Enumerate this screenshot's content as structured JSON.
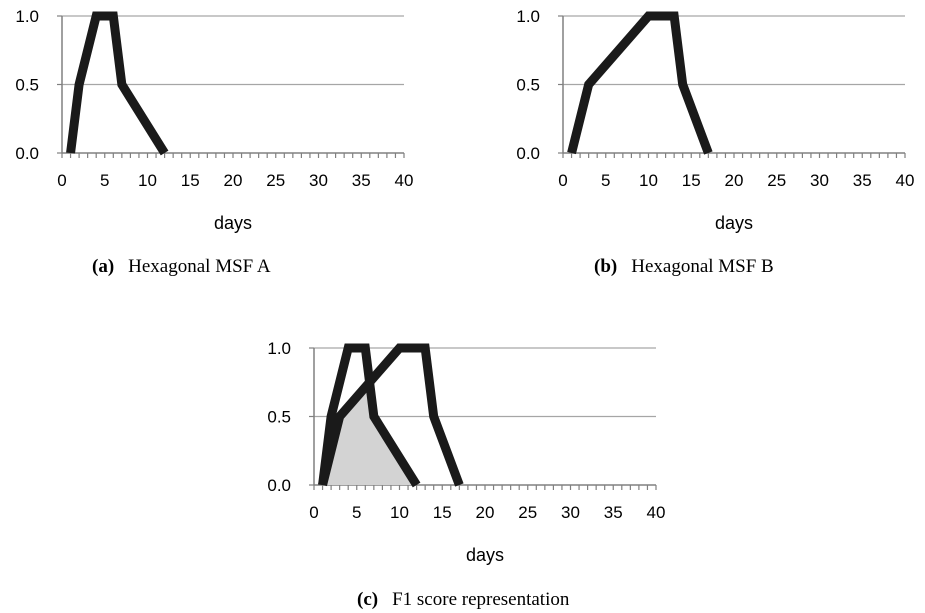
{
  "chart_data": [
    {
      "type": "line",
      "xlabel": "days",
      "ylabel": "",
      "xlim": [
        0,
        40
      ],
      "ylim": [
        0,
        1
      ],
      "xticks": [
        0,
        5,
        10,
        15,
        20,
        25,
        30,
        35,
        40
      ],
      "yticks": [
        0.0,
        0.5,
        1.0
      ],
      "ytick_labels": [
        "0.0",
        "0.5",
        "1.0"
      ],
      "grid": "horizontal",
      "caption_tag": "(a)",
      "caption_text": "Hexagonal MSF A",
      "series": [
        {
          "x": [
            1,
            2,
            4,
            6,
            7,
            12
          ],
          "y": [
            0,
            0.5,
            1,
            1,
            0.5,
            0
          ]
        }
      ]
    },
    {
      "type": "line",
      "xlabel": "days",
      "ylabel": "",
      "xlim": [
        0,
        40
      ],
      "ylim": [
        0,
        1
      ],
      "xticks": [
        0,
        5,
        10,
        15,
        20,
        25,
        30,
        35,
        40
      ],
      "yticks": [
        0.0,
        0.5,
        1.0
      ],
      "ytick_labels": [
        "0.0",
        "0.5",
        "1.0"
      ],
      "grid": "horizontal",
      "caption_tag": "(b)",
      "caption_text": "Hexagonal MSF B",
      "series": [
        {
          "x": [
            1,
            3,
            10,
            13,
            14,
            17
          ],
          "y": [
            0,
            0.5,
            1,
            1,
            0.5,
            0
          ]
        }
      ]
    },
    {
      "type": "area",
      "xlabel": "days",
      "ylabel": "",
      "xlim": [
        0,
        40
      ],
      "ylim": [
        0,
        1
      ],
      "xticks": [
        0,
        5,
        10,
        15,
        20,
        25,
        30,
        35,
        40
      ],
      "yticks": [
        0.0,
        0.5,
        1.0
      ],
      "ytick_labels": [
        "0.0",
        "0.5",
        "1.0"
      ],
      "grid": "horizontal",
      "caption_tag": "(c)",
      "caption_text": "F1 score representation",
      "series": [
        {
          "x": [
            1,
            2,
            4,
            6,
            7,
            12
          ],
          "y": [
            0,
            0.5,
            1,
            1,
            0.5,
            0
          ]
        },
        {
          "x": [
            1,
            3,
            10,
            13,
            14,
            17
          ],
          "y": [
            0,
            0.5,
            1,
            1,
            0.5,
            0
          ]
        }
      ],
      "shaded_overlap": true,
      "shade_color": "#d3d3d3"
    }
  ],
  "colors": {
    "line": "#1a1a1a",
    "grid": "#a6a6a6",
    "axis": "#808080"
  }
}
